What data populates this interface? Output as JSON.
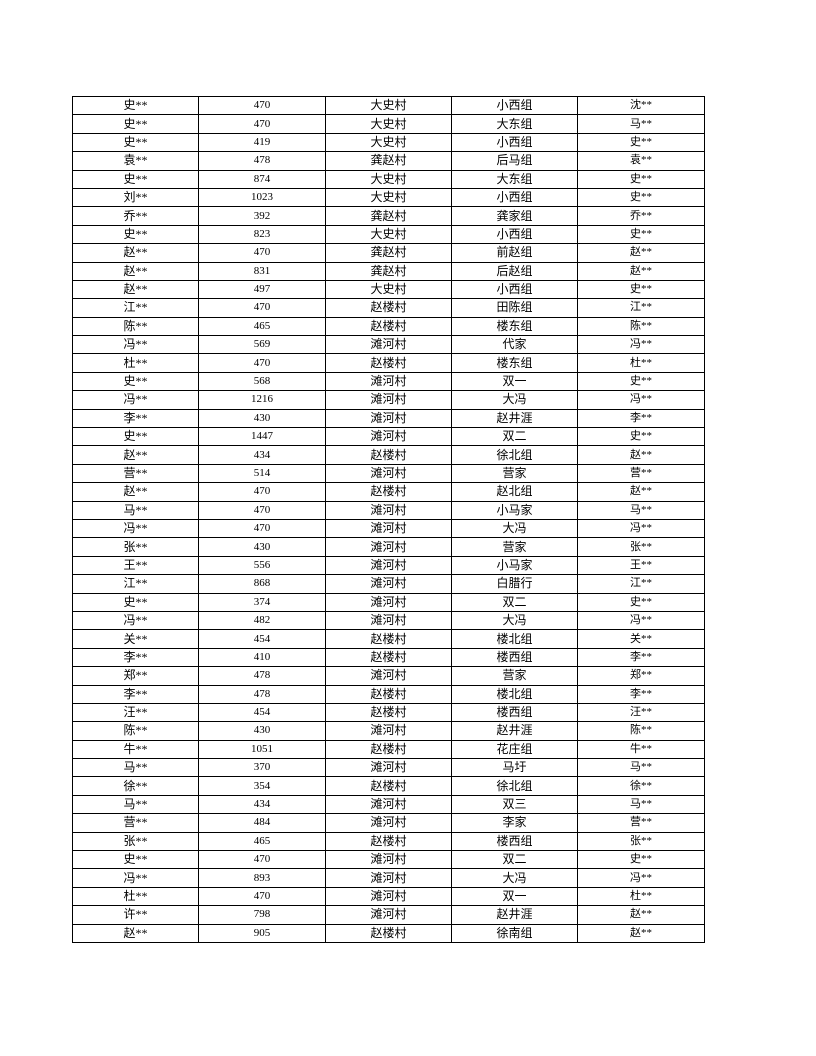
{
  "table": {
    "rows": [
      [
        "史**",
        "470",
        "大史村",
        "小西组",
        "沈**"
      ],
      [
        "史**",
        "470",
        "大史村",
        "大东组",
        "马**"
      ],
      [
        "史**",
        "419",
        "大史村",
        "小西组",
        "史**"
      ],
      [
        "袁**",
        "478",
        "龚赵村",
        "后马组",
        "袁**"
      ],
      [
        "史**",
        "874",
        "大史村",
        "大东组",
        "史**"
      ],
      [
        "刘**",
        "1023",
        "大史村",
        "小西组",
        "史**"
      ],
      [
        "乔**",
        "392",
        "龚赵村",
        "龚家组",
        "乔**"
      ],
      [
        "史**",
        "823",
        "大史村",
        "小西组",
        "史**"
      ],
      [
        "赵**",
        "470",
        "龚赵村",
        "前赵组",
        "赵**"
      ],
      [
        "赵**",
        "831",
        "龚赵村",
        "后赵组",
        "赵**"
      ],
      [
        "赵**",
        "497",
        "大史村",
        "小西组",
        "史**"
      ],
      [
        "江**",
        "470",
        "赵楼村",
        "田陈组",
        "江**"
      ],
      [
        "陈**",
        "465",
        "赵楼村",
        "楼东组",
        "陈**"
      ],
      [
        "冯**",
        "569",
        "滩河村",
        "代家",
        "冯**"
      ],
      [
        "杜**",
        "470",
        "赵楼村",
        "楼东组",
        "杜**"
      ],
      [
        "史**",
        "568",
        "滩河村",
        "双一",
        "史**"
      ],
      [
        "冯**",
        "1216",
        "滩河村",
        "大冯",
        "冯**"
      ],
      [
        "李**",
        "430",
        "滩河村",
        "赵井涯",
        "李**"
      ],
      [
        "史**",
        "1447",
        "滩河村",
        "双二",
        "史**"
      ],
      [
        "赵**",
        "434",
        "赵楼村",
        "徐北组",
        "赵**"
      ],
      [
        "营**",
        "514",
        "滩河村",
        "营家",
        "营**"
      ],
      [
        "赵**",
        "470",
        "赵楼村",
        "赵北组",
        "赵**"
      ],
      [
        "马**",
        "470",
        "滩河村",
        "小马家",
        "马**"
      ],
      [
        "冯**",
        "470",
        "滩河村",
        "大冯",
        "冯**"
      ],
      [
        "张**",
        "430",
        "滩河村",
        "营家",
        "张**"
      ],
      [
        "王**",
        "556",
        "滩河村",
        "小马家",
        "王**"
      ],
      [
        "江**",
        "868",
        "滩河村",
        "白腊行",
        "江**"
      ],
      [
        "史**",
        "374",
        "滩河村",
        "双二",
        "史**"
      ],
      [
        "冯**",
        "482",
        "滩河村",
        "大冯",
        "冯**"
      ],
      [
        "关**",
        "454",
        "赵楼村",
        "楼北组",
        "关**"
      ],
      [
        "李**",
        "410",
        "赵楼村",
        "楼西组",
        "李**"
      ],
      [
        "郑**",
        "478",
        "滩河村",
        "营家",
        "郑**"
      ],
      [
        "李**",
        "478",
        "赵楼村",
        "楼北组",
        "李**"
      ],
      [
        "汪**",
        "454",
        "赵楼村",
        "楼西组",
        "汪**"
      ],
      [
        "陈**",
        "430",
        "滩河村",
        "赵井涯",
        "陈**"
      ],
      [
        "牛**",
        "1051",
        "赵楼村",
        "花庄组",
        "牛**"
      ],
      [
        "马**",
        "370",
        "滩河村",
        "马圩",
        "马**"
      ],
      [
        "徐**",
        "354",
        "赵楼村",
        "徐北组",
        "徐**"
      ],
      [
        "马**",
        "434",
        "滩河村",
        "双三",
        "马**"
      ],
      [
        "营**",
        "484",
        "滩河村",
        "李家",
        "营**"
      ],
      [
        "张**",
        "465",
        "赵楼村",
        "楼西组",
        "张**"
      ],
      [
        "史**",
        "470",
        "滩河村",
        "双二",
        "史**"
      ],
      [
        "冯**",
        "893",
        "滩河村",
        "大冯",
        "冯**"
      ],
      [
        "杜**",
        "470",
        "滩河村",
        "双一",
        "杜**"
      ],
      [
        "许**",
        "798",
        "滩河村",
        "赵井涯",
        "赵**"
      ],
      [
        "赵**",
        "905",
        "赵楼村",
        "徐南组",
        "赵**"
      ]
    ]
  }
}
